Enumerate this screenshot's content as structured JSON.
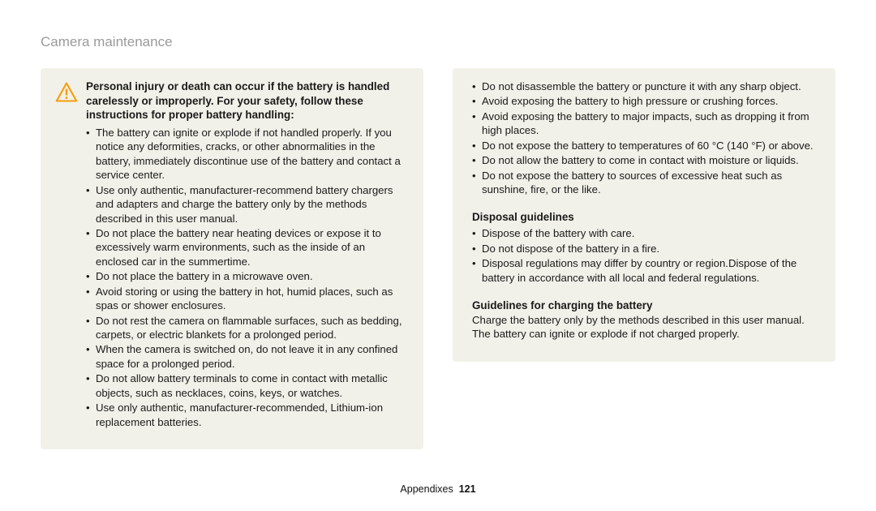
{
  "header": {
    "title": "Camera maintenance"
  },
  "warning": {
    "intro": "Personal injury or death can occur if the battery is handled carelessly or improperly. For your safety, follow these instructions for proper battery handling:",
    "icon_color": "#f59e0b",
    "left_bullets": [
      "The battery can ignite or explode if not handled properly. If you notice any deformities, cracks, or other abnormalities in the battery, immediately discontinue use of the battery and contact a service center.",
      "Use only authentic, manufacturer-recommend battery chargers and adapters and charge the battery only by the methods described in this user manual.",
      "Do not place the battery near heating devices or expose it to excessively warm environments, such as the inside of an enclosed car in the summertime.",
      "Do not place the battery in a microwave oven.",
      "Avoid storing or using the battery in hot, humid places, such as spas or shower enclosures.",
      "Do not rest the camera on flammable surfaces, such as bedding, carpets, or electric blankets for a prolonged period.",
      "When the camera is switched on, do not leave it in any confined space for a prolonged period.",
      "Do not allow battery terminals to come in contact with metallic objects, such as necklaces, coins, keys, or watches.",
      "Use only authentic, manufacturer-recommended, Lithium-ion replacement batteries."
    ],
    "right_bullets": [
      "Do not disassemble the battery or puncture it with any sharp object.",
      "Avoid exposing the battery to high pressure or crushing forces.",
      "Avoid exposing the battery to major impacts, such as dropping it from high places.",
      "Do not expose the battery to temperatures of 60 °C (140 °F) or above.",
      "Do not allow the battery to come in contact with moisture or liquids.",
      "Do not expose the battery to sources of excessive heat such as sunshine, fire, or the like."
    ]
  },
  "disposal": {
    "heading": "Disposal guidelines",
    "bullets": [
      "Dispose of the battery with care.",
      "Do not dispose of the battery in a fire.",
      "Disposal regulations may differ by country or region.Dispose of the battery in accordance with all local and federal regulations."
    ]
  },
  "charging": {
    "heading": "Guidelines for charging the battery",
    "body": "Charge the battery only by the methods described in this user manual. The battery can ignite or explode if not charged properly."
  },
  "footer": {
    "section": "Appendixes",
    "page": "121"
  },
  "style": {
    "box_bg": "#f2f1e9",
    "header_color": "#9a9a9a",
    "text_color": "#1a1a1a"
  }
}
